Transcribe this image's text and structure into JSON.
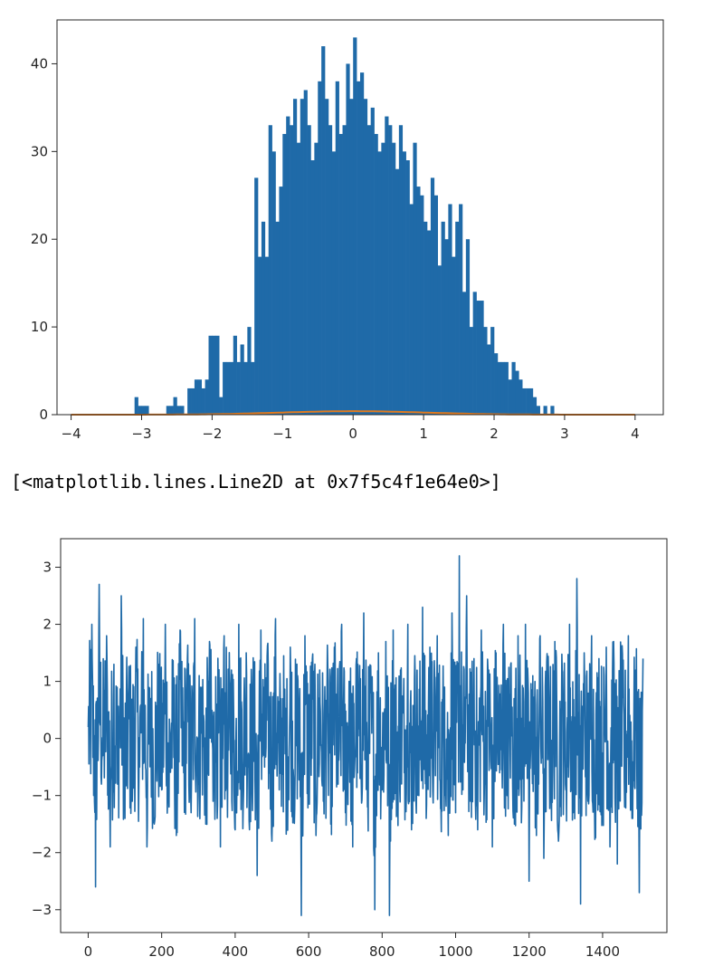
{
  "output_text": "[<matplotlib.lines.Line2D at 0x7f5c4f1e64e0>]",
  "colors": {
    "hist": "#1f6aa8",
    "pdf_line": "#e07b20",
    "series": "#1f6aa8",
    "axes": "#262626"
  },
  "chart_data": [
    {
      "type": "bar",
      "subtype": "histogram",
      "title": "",
      "xlabel": "",
      "ylabel": "",
      "xlim": [
        -4.2,
        4.4
      ],
      "ylim": [
        0,
        45
      ],
      "xticks": [
        "−4",
        "−3",
        "−2",
        "−1",
        "0",
        "1",
        "2",
        "3",
        "4"
      ],
      "xtick_values": [
        -4,
        -3,
        -2,
        -1,
        0,
        1,
        2,
        3,
        4
      ],
      "yticks": [
        "0",
        "10",
        "20",
        "30",
        "40"
      ],
      "ytick_values": [
        0,
        10,
        20,
        30,
        40
      ],
      "bin_start": -3.1,
      "bin_width": 0.05,
      "counts": [
        2,
        1,
        1,
        1,
        0,
        0,
        0,
        0,
        0,
        1,
        1,
        2,
        1,
        1,
        0,
        3,
        3,
        4,
        4,
        3,
        4,
        9,
        9,
        9,
        2,
        6,
        6,
        6,
        9,
        6,
        8,
        6,
        10,
        6,
        27,
        18,
        22,
        18,
        33,
        30,
        22,
        26,
        32,
        34,
        33,
        36,
        31,
        36,
        37,
        33,
        29,
        31,
        38,
        42,
        36,
        33,
        30,
        38,
        32,
        33,
        40,
        36,
        43,
        38,
        39,
        36,
        33,
        35,
        32,
        30,
        31,
        34,
        33,
        31,
        28,
        33,
        30,
        29,
        24,
        31,
        26,
        25,
        22,
        21,
        27,
        25,
        17,
        22,
        20,
        24,
        18,
        22,
        24,
        14,
        20,
        10,
        14,
        13,
        13,
        10,
        8,
        10,
        7,
        6,
        6,
        6,
        4,
        6,
        5,
        4,
        3,
        3,
        3,
        2,
        1,
        0,
        1,
        0,
        1
      ]
    },
    {
      "type": "line",
      "subtype": "pdf",
      "x": [
        -4,
        -3,
        -2,
        -1,
        0,
        1,
        2,
        3,
        4
      ],
      "y": [
        0.0001,
        0.0044,
        0.054,
        0.242,
        0.399,
        0.242,
        0.054,
        0.0044,
        0.0001
      ]
    },
    {
      "type": "line",
      "title": "",
      "xlabel": "",
      "ylabel": "",
      "xlim": [
        -75,
        1575
      ],
      "ylim": [
        -3.4,
        3.5
      ],
      "xticks": [
        "0",
        "200",
        "400",
        "600",
        "800",
        "1000",
        "1200",
        "1400"
      ],
      "xtick_values": [
        0,
        200,
        400,
        600,
        800,
        1000,
        1200,
        1400
      ],
      "yticks": [
        "−3",
        "−2",
        "−1",
        "0",
        "1",
        "2",
        "3"
      ],
      "ytick_values": [
        -3,
        -2,
        -1,
        0,
        1,
        2,
        3
      ],
      "n_points": 1500,
      "values_sample_step": 10,
      "values": [
        0.2,
        2.0,
        -2.6,
        2.7,
        -0.3,
        1.8,
        -1.9,
        1.3,
        -0.8,
        2.5,
        -1.4,
        0.9,
        -1.1,
        1.6,
        -0.5,
        2.1,
        -1.9,
        0.7,
        -1.5,
        1.2,
        -0.9,
        2.0,
        -1.2,
        0.5,
        -1.7,
        1.9,
        -0.6,
        1.4,
        -1.3,
        2.1,
        -0.8,
        0.9,
        -1.5,
        1.7,
        -1.1,
        0.6,
        -1.9,
        1.8,
        -0.4,
        1.2,
        -1.6,
        2.0,
        -0.7,
        1.5,
        -1.2,
        0.8,
        -2.4,
        1.9,
        -0.5,
        1.3,
        -1.8,
        2.1,
        -0.9,
        0.7,
        -1.4,
        1.6,
        -1.0,
        1.1,
        -3.1,
        1.8,
        -0.6,
        1.4,
        -1.7,
        1.2,
        -1.1,
        0.9,
        -1.5,
        1.6,
        -0.8,
        2.0,
        -1.3,
        1.0,
        -1.9,
        1.4,
        -0.7,
        2.2,
        -1.2,
        0.8,
        -3.0,
        1.5,
        -0.9,
        1.7,
        -3.1,
        1.9,
        -1.1,
        1.2,
        -0.6,
        2.0,
        -1.6,
        1.1,
        -1.0,
        2.3,
        -1.4,
        1.6,
        -0.5,
        1.8,
        -1.2,
        0.9,
        -1.7,
        2.2,
        -1.3,
        3.2,
        -0.9,
        2.5,
        -1.1,
        1.4,
        -1.6,
        1.9,
        -0.8,
        1.2,
        -1.9,
        1.5,
        -0.6,
        2.0,
        -1.0,
        1.3,
        -1.5,
        1.8,
        -1.2,
        2.0,
        -2.5,
        1.1,
        -1.7,
        1.8,
        -2.1,
        1.3,
        -1.0,
        1.7,
        -1.8,
        1.2,
        -0.9,
        2.0,
        -1.3,
        2.8,
        -2.9,
        1.5,
        -1.1,
        1.8,
        -1.7,
        1.4,
        -1.0,
        1.6,
        -1.9,
        1.7,
        -2.2,
        1.3,
        -1.2,
        1.8,
        -1.4,
        1.2,
        -2.7,
        1.4
      ]
    }
  ]
}
